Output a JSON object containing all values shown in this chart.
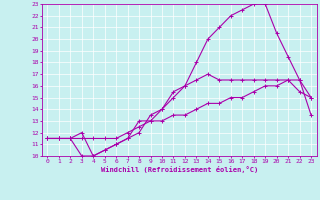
{
  "xlabel": "Windchill (Refroidissement éolien,°C)",
  "xlim": [
    -0.5,
    23.5
  ],
  "ylim": [
    10,
    23
  ],
  "xticks": [
    0,
    1,
    2,
    3,
    4,
    5,
    6,
    7,
    8,
    9,
    10,
    11,
    12,
    13,
    14,
    15,
    16,
    17,
    18,
    19,
    20,
    21,
    22,
    23
  ],
  "yticks": [
    10,
    11,
    12,
    13,
    14,
    15,
    16,
    17,
    18,
    19,
    20,
    21,
    22,
    23
  ],
  "bg_color": "#c8f0f0",
  "line_color": "#aa00aa",
  "grid_color": "#ffffff",
  "line1_x": [
    0,
    1,
    2,
    3,
    4,
    5,
    6,
    7,
    8,
    9,
    10,
    11,
    12,
    13,
    14,
    15,
    16,
    17,
    18,
    19,
    20,
    21,
    22,
    23
  ],
  "line1_y": [
    11.5,
    11.5,
    11.5,
    12.0,
    10.0,
    10.5,
    11.0,
    11.5,
    13.0,
    13.0,
    14.0,
    15.0,
    16.0,
    18.0,
    20.0,
    21.0,
    22.0,
    22.5,
    23.0,
    23.0,
    20.5,
    18.5,
    16.5,
    15.0
  ],
  "line2_x": [
    0,
    1,
    2,
    3,
    4,
    5,
    6,
    7,
    8,
    9,
    10,
    11,
    12,
    13,
    14,
    15,
    16,
    17,
    18,
    19,
    20,
    21,
    22,
    23
  ],
  "line2_y": [
    11.5,
    11.5,
    11.5,
    10.0,
    10.0,
    10.5,
    11.0,
    11.5,
    12.0,
    13.5,
    14.0,
    15.5,
    16.0,
    16.5,
    17.0,
    16.5,
    16.5,
    16.5,
    16.5,
    16.5,
    16.5,
    16.5,
    15.5,
    15.0
  ],
  "line3_x": [
    0,
    1,
    2,
    3,
    4,
    5,
    6,
    7,
    8,
    9,
    10,
    11,
    12,
    13,
    14,
    15,
    16,
    17,
    18,
    19,
    20,
    21,
    22,
    23
  ],
  "line3_y": [
    11.5,
    11.5,
    11.5,
    11.5,
    11.5,
    11.5,
    11.5,
    12.0,
    12.5,
    13.0,
    13.0,
    13.5,
    13.5,
    14.0,
    14.5,
    14.5,
    15.0,
    15.0,
    15.5,
    16.0,
    16.0,
    16.5,
    16.5,
    13.5
  ],
  "tick_fontsize": 4.5,
  "xlabel_fontsize": 5.0
}
